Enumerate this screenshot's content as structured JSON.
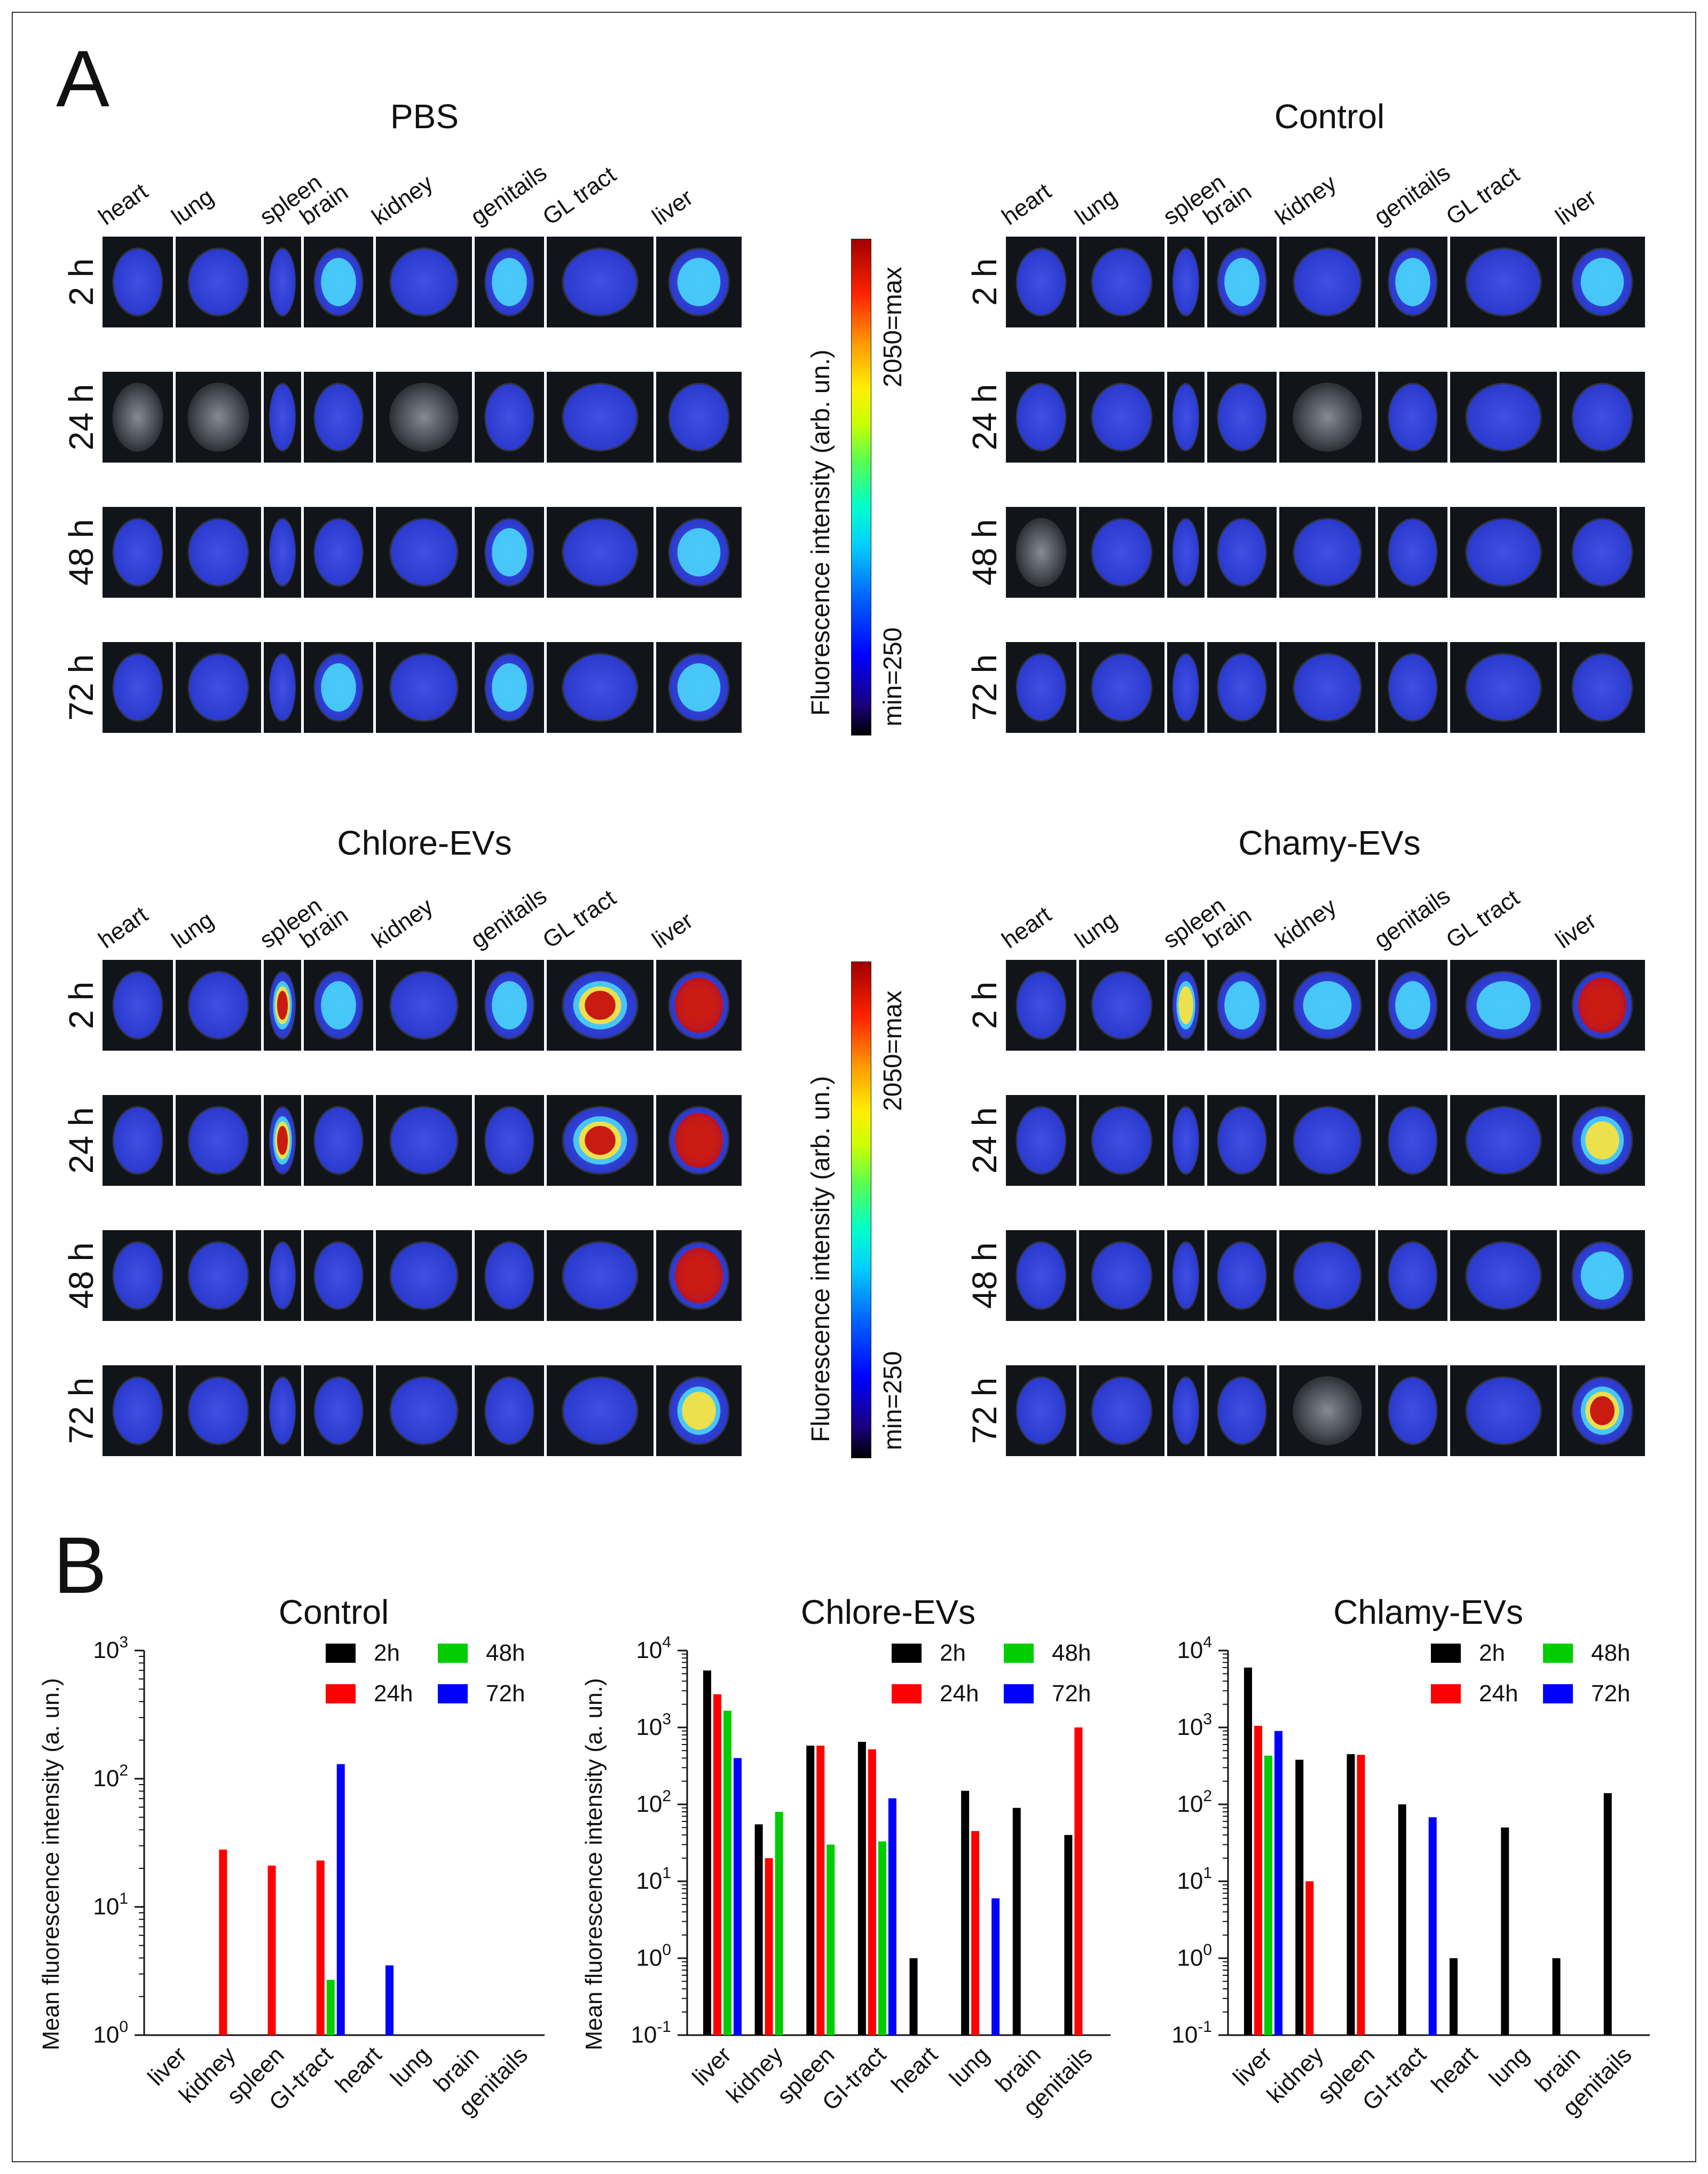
{
  "panels": {
    "a": "A",
    "b": "B"
  },
  "fluorescence_grid": {
    "groups": [
      "PBS",
      "Control",
      "Chlore-EVs",
      "Chamy-EVs"
    ],
    "organs": [
      "heart",
      "lung",
      "spleen",
      "brain",
      "kidney",
      "genitails",
      "GL tract",
      "liver"
    ],
    "timepoints": [
      "2 h",
      "24 h",
      "48 h",
      "72 h"
    ],
    "colorbar": {
      "title": "Fluorescence intensity (arb. un.)",
      "min_label": "min=250",
      "max_label": "2050=max"
    },
    "intensity_levels": {
      "PBS": [
        [
          1,
          1,
          1,
          2,
          1,
          2,
          1,
          2
        ],
        [
          0,
          0,
          1,
          1,
          0,
          1,
          1,
          1
        ],
        [
          1,
          1,
          1,
          1,
          1,
          2,
          1,
          2
        ],
        [
          1,
          1,
          1,
          2,
          1,
          2,
          1,
          2
        ]
      ],
      "Control": [
        [
          1,
          1,
          1,
          3,
          1,
          2,
          1,
          2
        ],
        [
          1,
          1,
          1,
          1,
          0,
          1,
          1,
          1
        ],
        [
          0,
          1,
          1,
          1,
          1,
          1,
          1,
          1
        ],
        [
          1,
          1,
          1,
          1,
          1,
          1,
          1,
          1
        ]
      ],
      "Chlore-EVs": [
        [
          1,
          1,
          5,
          2,
          1,
          2,
          5,
          6
        ],
        [
          1,
          1,
          5,
          1,
          1,
          1,
          5,
          6
        ],
        [
          1,
          1,
          1,
          1,
          1,
          1,
          1,
          6
        ],
        [
          1,
          1,
          1,
          1,
          1,
          1,
          1,
          4
        ]
      ],
      "Chamy-EVs": [
        [
          1,
          1,
          4,
          2,
          2,
          3,
          2,
          6
        ],
        [
          1,
          1,
          1,
          1,
          1,
          1,
          1,
          4
        ],
        [
          1,
          1,
          1,
          1,
          1,
          1,
          1,
          3
        ],
        [
          1,
          1,
          1,
          1,
          0,
          1,
          1,
          5
        ]
      ]
    },
    "colors": {
      "tissue_bg": "#111418",
      "heat_low": "#2a3cff",
      "heat_mid": "#4ce8ff",
      "heat_high": "#ffe23a",
      "heat_max": "#c81010"
    }
  },
  "chart_data": [
    {
      "type": "bar",
      "title": "Control",
      "xlabel": "",
      "ylabel": "Mean fluorescence intensity (a. un.)",
      "yscale": "log",
      "ylim": [
        1,
        1000
      ],
      "ytick_labels": [
        [
          "10",
          "0"
        ],
        [
          "10",
          "1"
        ],
        [
          "10",
          "2"
        ],
        [
          "10",
          "3"
        ]
      ],
      "categories": [
        "liver",
        "kidney",
        "spleen",
        "GI-tract",
        "heart",
        "lung",
        "brain",
        "genitails"
      ],
      "legend": [
        "2h",
        "24h",
        "48h",
        "72h"
      ],
      "series": [
        {
          "name": "2h",
          "color": "#000000",
          "values": [
            null,
            null,
            null,
            null,
            null,
            null,
            null,
            null
          ]
        },
        {
          "name": "24h",
          "color": "#ff0000",
          "values": [
            null,
            28,
            21,
            23,
            null,
            null,
            null,
            null
          ]
        },
        {
          "name": "48h",
          "color": "#00cc00",
          "values": [
            null,
            null,
            null,
            2.7,
            null,
            null,
            null,
            null
          ]
        },
        {
          "name": "72h",
          "color": "#0000ff",
          "values": [
            null,
            null,
            null,
            130,
            3.5,
            null,
            null,
            null
          ]
        }
      ]
    },
    {
      "type": "bar",
      "title": "Chlore-EVs",
      "xlabel": "",
      "ylabel": "Mean fluorescence intensity (a. un.)",
      "yscale": "log",
      "ylim": [
        0.1,
        10000
      ],
      "ytick_labels": [
        [
          "10",
          "-1"
        ],
        [
          "10",
          "0"
        ],
        [
          "10",
          "1"
        ],
        [
          "10",
          "2"
        ],
        [
          "10",
          "3"
        ],
        [
          "10",
          "4"
        ]
      ],
      "categories": [
        "liver",
        "kidney",
        "spleen",
        "GI-tract",
        "heart",
        "lung",
        "brain",
        "genitails"
      ],
      "legend": [
        "2h",
        "24h",
        "48h",
        "72h"
      ],
      "series": [
        {
          "name": "2h",
          "color": "#000000",
          "values": [
            5500,
            55,
            580,
            650,
            1,
            150,
            90,
            40
          ]
        },
        {
          "name": "24h",
          "color": "#ff0000",
          "values": [
            2700,
            20,
            580,
            520,
            null,
            45,
            null,
            1000
          ]
        },
        {
          "name": "48h",
          "color": "#00cc00",
          "values": [
            1650,
            80,
            30,
            33,
            null,
            null,
            null,
            null
          ]
        },
        {
          "name": "72h",
          "color": "#0000ff",
          "values": [
            400,
            null,
            null,
            120,
            null,
            6,
            null,
            null
          ]
        }
      ]
    },
    {
      "type": "bar",
      "title": "Chlamy-EVs",
      "xlabel": "",
      "ylabel": "",
      "yscale": "log",
      "ylim": [
        0.1,
        10000
      ],
      "ytick_labels": [
        [
          "10",
          "-1"
        ],
        [
          "10",
          "0"
        ],
        [
          "10",
          "1"
        ],
        [
          "10",
          "2"
        ],
        [
          "10",
          "3"
        ],
        [
          "10",
          "4"
        ]
      ],
      "categories": [
        "liver",
        "kidney",
        "spleen",
        "GI-tract",
        "heart",
        "lung",
        "brain",
        "genitails"
      ],
      "legend": [
        "2h",
        "24h",
        "48h",
        "72h"
      ],
      "series": [
        {
          "name": "2h",
          "color": "#000000",
          "values": [
            6000,
            380,
            450,
            100,
            1,
            50,
            1,
            140
          ]
        },
        {
          "name": "24h",
          "color": "#ff0000",
          "values": [
            1050,
            10,
            440,
            null,
            null,
            null,
            null,
            null
          ]
        },
        {
          "name": "48h",
          "color": "#00cc00",
          "values": [
            430,
            null,
            null,
            null,
            null,
            null,
            null,
            null
          ]
        },
        {
          "name": "72h",
          "color": "#0000ff",
          "values": [
            900,
            null,
            null,
            68,
            null,
            null,
            null,
            null
          ]
        }
      ]
    }
  ]
}
